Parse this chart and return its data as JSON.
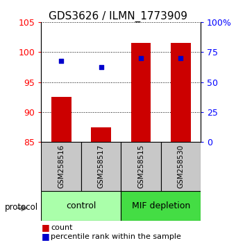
{
  "title": "GDS3626 / ILMN_1773909",
  "samples": [
    "GSM258516",
    "GSM258517",
    "GSM258515",
    "GSM258530"
  ],
  "bar_values": [
    92.5,
    87.5,
    101.5,
    101.5
  ],
  "bar_bottom": 85,
  "blue_values": [
    98.5,
    97.5,
    99.0,
    99.0
  ],
  "bar_color": "#cc0000",
  "blue_color": "#0000cc",
  "ylim_left": [
    85,
    105
  ],
  "ylim_right": [
    0,
    100
  ],
  "yticks_left": [
    85,
    90,
    95,
    100,
    105
  ],
  "yticks_right": [
    0,
    25,
    50,
    75,
    100
  ],
  "ytick_labels_right": [
    "0",
    "25",
    "50",
    "75",
    "100%"
  ],
  "groups": [
    {
      "label": "control",
      "samples": [
        0,
        1
      ],
      "color": "#aaffaa"
    },
    {
      "label": "MIF depletion",
      "samples": [
        2,
        3
      ],
      "color": "#44dd44"
    }
  ],
  "legend_count_label": "count",
  "legend_pct_label": "percentile rank within the sample",
  "protocol_label": "protocol",
  "bar_width": 0.5,
  "background_color": "#ffffff",
  "sample_box_color": "#c8c8c8"
}
